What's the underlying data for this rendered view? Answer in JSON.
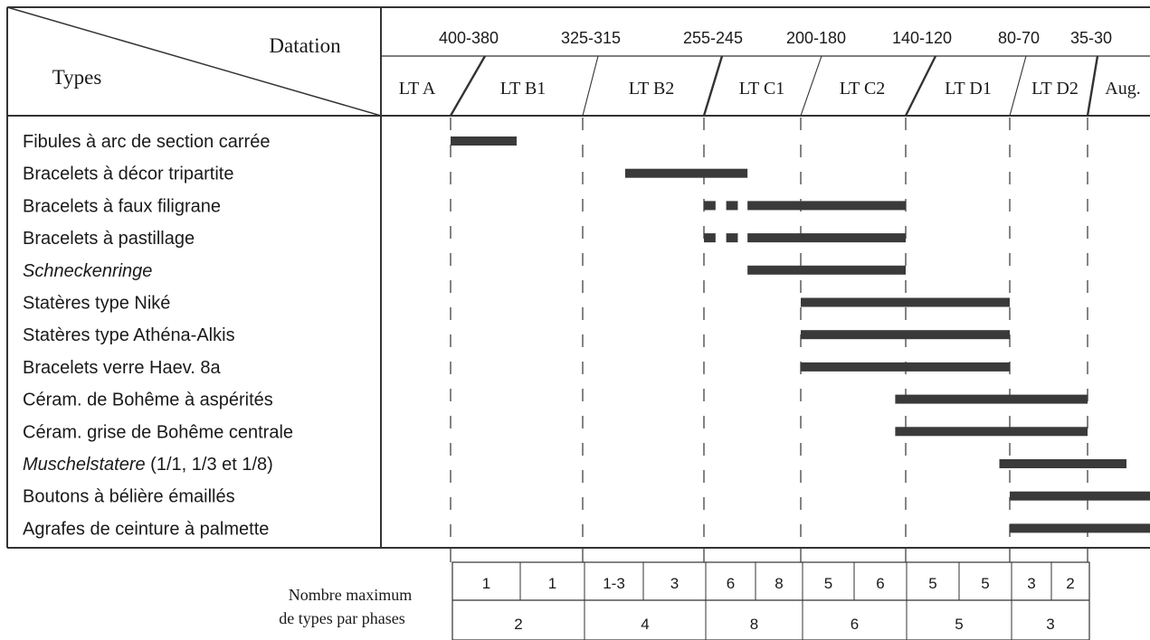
{
  "header": {
    "corner_top": "Datation",
    "corner_bottom": "Types"
  },
  "dates": [
    "400-380",
    "325-315",
    "255-245",
    "200-180",
    "140-120",
    "80-70",
    "35-30"
  ],
  "phases": [
    "LT A",
    "LT B1",
    "LT B2",
    "LT C1",
    "LT C2",
    "LT D1",
    "LT D2",
    "Aug."
  ],
  "types": [
    {
      "label": "Fibules à arc de section carrée",
      "italic": false,
      "suffix": "",
      "segments": [
        [
          0,
          0.5
        ]
      ]
    },
    {
      "label": "Bracelets à décor tripartite",
      "italic": false,
      "suffix": "",
      "segments": [
        [
          1.35,
          2.45
        ]
      ]
    },
    {
      "label": "Bracelets à faux filigrane",
      "italic": false,
      "suffix": "",
      "segments": [
        [
          2.0,
          2.12
        ],
        [
          2.23,
          2.35
        ],
        [
          2.45,
          4.0
        ]
      ]
    },
    {
      "label": "Bracelets à pastillage",
      "italic": false,
      "suffix": "",
      "segments": [
        [
          2.0,
          2.12
        ],
        [
          2.23,
          2.35
        ],
        [
          2.45,
          4.0
        ]
      ]
    },
    {
      "label": "Schneckenringe",
      "italic": true,
      "suffix": "",
      "segments": [
        [
          2.45,
          4.0
        ]
      ]
    },
    {
      "label": "Statères type Niké",
      "italic": false,
      "suffix": "",
      "segments": [
        [
          3.0,
          5.0
        ]
      ]
    },
    {
      "label": "Statères type Athéna-Alkis",
      "italic": false,
      "suffix": "",
      "segments": [
        [
          3.0,
          5.0
        ]
      ]
    },
    {
      "label": "Bracelets verre Haev. 8a",
      "italic": false,
      "suffix": "",
      "segments": [
        [
          3.0,
          5.0
        ]
      ]
    },
    {
      "label": "Céram. de Bohême à aspérités",
      "italic": false,
      "suffix": "",
      "segments": [
        [
          3.9,
          6.0
        ]
      ]
    },
    {
      "label": "Céram. grise de Bohême centrale",
      "italic": false,
      "suffix": "",
      "segments": [
        [
          3.9,
          6.0
        ]
      ]
    },
    {
      "label": "Muschelstatere",
      "italic": true,
      "suffix": " (1/1, 1/3 et 1/8)",
      "segments": [
        [
          4.9,
          6.5
        ]
      ]
    },
    {
      "label": "Boutons à bélière émaillés",
      "italic": false,
      "suffix": "",
      "segments": [
        [
          5.0,
          7.0
        ]
      ]
    },
    {
      "label": "Agrafes de ceinture à palmette",
      "italic": false,
      "suffix": "",
      "segments": [
        [
          5.0,
          7.0
        ]
      ]
    }
  ],
  "counts": {
    "label_line1": "Nombre maximum",
    "label_line2": "de types par phases",
    "sub": [
      "1",
      "1",
      "1-3",
      "3",
      "6",
      "8",
      "5",
      "6",
      "5",
      "5",
      "3",
      "2"
    ],
    "main": [
      "2",
      "4",
      "8",
      "6",
      "5",
      "3"
    ]
  },
  "colors": {
    "line": "#333333",
    "bar": "#3a3a3a",
    "text": "#1a1a1a"
  }
}
